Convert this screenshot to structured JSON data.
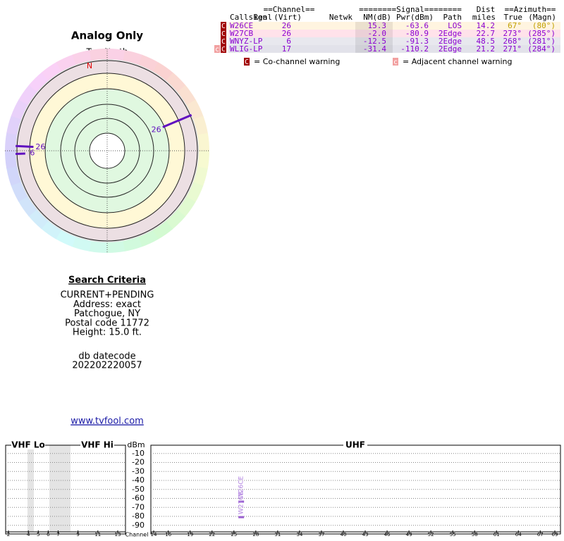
{
  "radar": {
    "title": "Analog Only",
    "north_label": "TrueNorth",
    "north_marker": "N",
    "spokes": [
      {
        "label": "26",
        "azimuth": 67,
        "nm": 15.3
      },
      {
        "label": "26",
        "azimuth": 273,
        "nm": -2.0
      },
      {
        "label": "6",
        "azimuth": 268,
        "nm": -12.5
      }
    ]
  },
  "table": {
    "group_headers": [
      "==Channel==",
      "========Signal========",
      "Dist",
      "==Azimuth=="
    ],
    "headers": [
      "Callsign",
      "Real",
      "(Virt)",
      "Netwk",
      "NM(dB)",
      "Pwr(dBm)",
      "Path",
      "miles",
      "True",
      "(Magn)"
    ],
    "rows": [
      {
        "flags": [
          "C"
        ],
        "callsign": "W26CE",
        "real": "26",
        "nm": "15.3",
        "pwr": "-63.6",
        "path": "LOS",
        "dist": "14.2",
        "true": "67°",
        "magn": "(80°)"
      },
      {
        "flags": [
          "C"
        ],
        "callsign": "W27CB",
        "real": "26",
        "nm": "-2.0",
        "pwr": "-80.9",
        "path": "2Edge",
        "dist": "22.7",
        "true": "273°",
        "magn": "(285°)"
      },
      {
        "flags": [
          "C"
        ],
        "callsign": "WNYZ-LP",
        "real": "6",
        "nm": "-12.5",
        "pwr": "-91.3",
        "path": "2Edge",
        "dist": "48.5",
        "true": "268°",
        "magn": "(281°)"
      },
      {
        "flags": [
          "c",
          "C"
        ],
        "callsign": "WLIG-LP",
        "real": "17",
        "nm": "-31.4",
        "pwr": "-110.2",
        "path": "2Edge",
        "dist": "21.2",
        "true": "271°",
        "magn": "(284°)"
      }
    ]
  },
  "legend": [
    {
      "icon": "C",
      "text": "= Co-channel warning"
    },
    {
      "icon": "c",
      "text": "= Adjacent channel warning"
    }
  ],
  "search": {
    "title": "Search Criteria",
    "lines": [
      "CURRENT+PENDING",
      "Address: exact",
      "Patchogue, NY",
      "Postal code 11772",
      "Height: 15.0 ft."
    ],
    "datecode_label": "db datecode",
    "datecode": "202202220057",
    "link": "www.tvfool.com"
  },
  "spectrum": {
    "vhf_lo": "VHF Lo",
    "vhf_hi": "VHF Hi",
    "uhf": "UHF",
    "y_label": "dBm",
    "x_label": "Channel",
    "ylim": [
      -100,
      0
    ],
    "yticks": [
      -10,
      -20,
      -30,
      -40,
      -50,
      -60,
      -70,
      -80,
      -90
    ],
    "vhf_xlim": [
      2,
      13
    ],
    "vhf_ticks": [
      2,
      4,
      5,
      6,
      7,
      9,
      11,
      13
    ],
    "uhf_xlim": [
      14,
      69
    ],
    "uhf_ticks": [
      14,
      16,
      19,
      22,
      25,
      28,
      31,
      34,
      37,
      40,
      43,
      46,
      49,
      52,
      55,
      58,
      61,
      64,
      67,
      69
    ],
    "stations": [
      {
        "label": "W26CE",
        "channel": 26,
        "dbm": -63.6
      },
      {
        "label": "W27CB",
        "channel": 26,
        "dbm": -80.9
      }
    ]
  }
}
